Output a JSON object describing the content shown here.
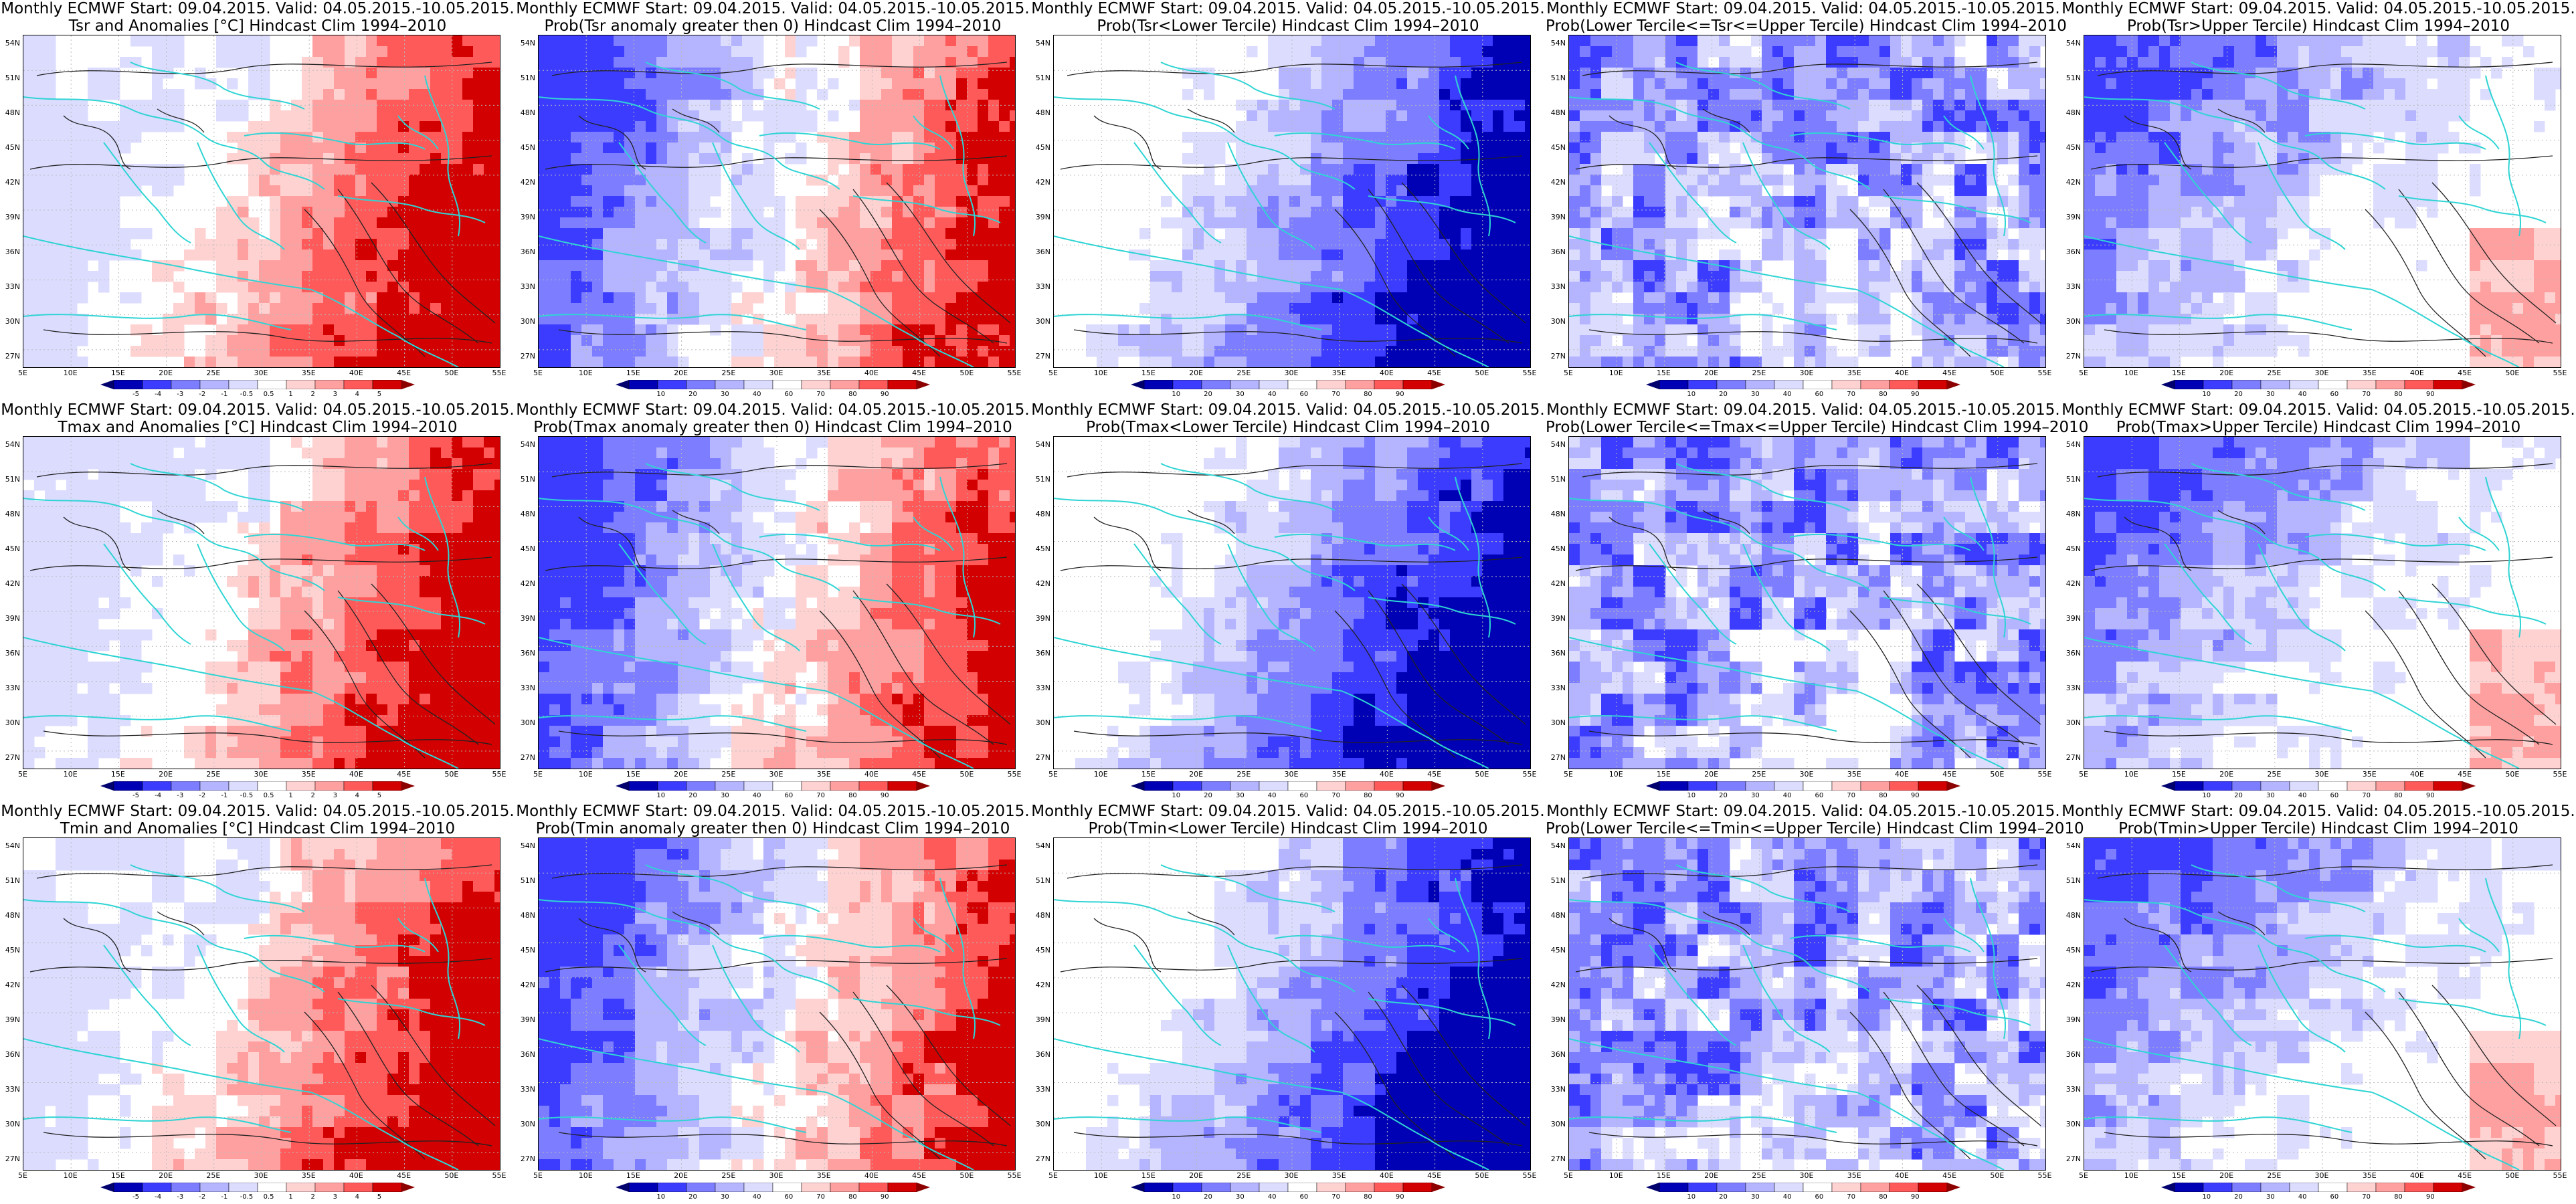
{
  "title_line1": "Monthly ECMWF Start: 09.04.2015. Valid: 04.05.2015.-10.05.2015.",
  "lat_labels": [
    "54N",
    "51N",
    "48N",
    "45N",
    "42N",
    "39N",
    "36N",
    "33N",
    "30N",
    "27N"
  ],
  "lon_labels": [
    "5E",
    "10E",
    "15E",
    "20E",
    "25E",
    "30E",
    "35E",
    "40E",
    "45E",
    "50E",
    "55E"
  ],
  "colorbars": {
    "anomaly": [
      "-5",
      "-4",
      "-3",
      "-2",
      "-1",
      "-0.5",
      "0.5",
      "1",
      "2",
      "3",
      "4",
      "5"
    ],
    "prob": [
      "10",
      "20",
      "30",
      "40",
      "60",
      "70",
      "80",
      "90"
    ]
  },
  "colors": {
    "coast": "#2fd4d4",
    "contour": "#222222",
    "blue_dark": "#0000b4",
    "blue": "#3c3cff",
    "blue_mid": "#7d7dff",
    "blue_light": "#b4b4ff",
    "blue_pale": "#dcdcff",
    "red_pale": "#ffd2d2",
    "red_light": "#ffa0a0",
    "red": "#ff5a5a",
    "red_dark": "#d20000"
  },
  "panels": [
    {
      "id": "tsr-anom",
      "line2": "Tsr and Anomalies [°C] Hindcast Clim 1994–2010",
      "cbar": "anomaly",
      "theme": "red-east"
    },
    {
      "id": "tsr-prob-gt0",
      "line2": "Prob(Tsr anomaly greater then 0) Hindcast Clim 1994–2010",
      "cbar": "prob",
      "theme": "red-east-blue-west"
    },
    {
      "id": "tsr-prob-lower",
      "line2": "Prob(Tsr<Lower Tercile) Hindcast Clim 1994–2010",
      "cbar": "prob",
      "theme": "blue-east"
    },
    {
      "id": "tsr-prob-middle",
      "line2": "Prob(Lower Tercile<=Tsr<=Upper Tercile) Hindcast Clim 1994–2010",
      "cbar": "prob",
      "theme": "blue-all"
    },
    {
      "id": "tsr-prob-upper",
      "line2": "Prob(Tsr>Upper Tercile) Hindcast Clim 1994–2010",
      "cbar": "prob",
      "theme": "blue-west-red-se"
    },
    {
      "id": "tmax-anom",
      "line2": "Tmax and Anomalies [°C] Hindcast Clim 1994–2010",
      "cbar": "anomaly",
      "theme": "red-east"
    },
    {
      "id": "tmax-prob-gt0",
      "line2": "Prob(Tmax anomaly greater then 0) Hindcast Clim 1994–2010",
      "cbar": "prob",
      "theme": "red-east-blue-west"
    },
    {
      "id": "tmax-prob-lower",
      "line2": "Prob(Tmax<Lower Tercile) Hindcast Clim 1994–2010",
      "cbar": "prob",
      "theme": "blue-east"
    },
    {
      "id": "tmax-prob-middle",
      "line2": "Prob(Lower Tercile<=Tmax<=Upper Tercile) Hindcast Clim 1994–2010",
      "cbar": "prob",
      "theme": "blue-all"
    },
    {
      "id": "tmax-prob-upper",
      "line2": "Prob(Tmax>Upper Tercile) Hindcast Clim 1994–2010",
      "cbar": "prob",
      "theme": "blue-west-red-se"
    },
    {
      "id": "tmin-anom",
      "line2": "Tmin and Anomalies [°C] Hindcast Clim 1994–2010",
      "cbar": "anomaly",
      "theme": "red-east"
    },
    {
      "id": "tmin-prob-gt0",
      "line2": "Prob(Tmin anomaly greater then 0) Hindcast Clim 1994–2010",
      "cbar": "prob",
      "theme": "red-east-blue-west"
    },
    {
      "id": "tmin-prob-lower",
      "line2": "Prob(Tmin<Lower Tercile) Hindcast Clim 1994–2010",
      "cbar": "prob",
      "theme": "blue-east"
    },
    {
      "id": "tmin-prob-middle",
      "line2": "Prob(Lower Tercile<=Tmin<=Upper Tercile) Hindcast Clim 1994–2010",
      "cbar": "prob",
      "theme": "blue-all"
    },
    {
      "id": "tmin-prob-upper",
      "line2": "Prob(Tmin>Upper Tercile) Hindcast Clim 1994–2010",
      "cbar": "prob",
      "theme": "blue-west-red-se"
    }
  ]
}
